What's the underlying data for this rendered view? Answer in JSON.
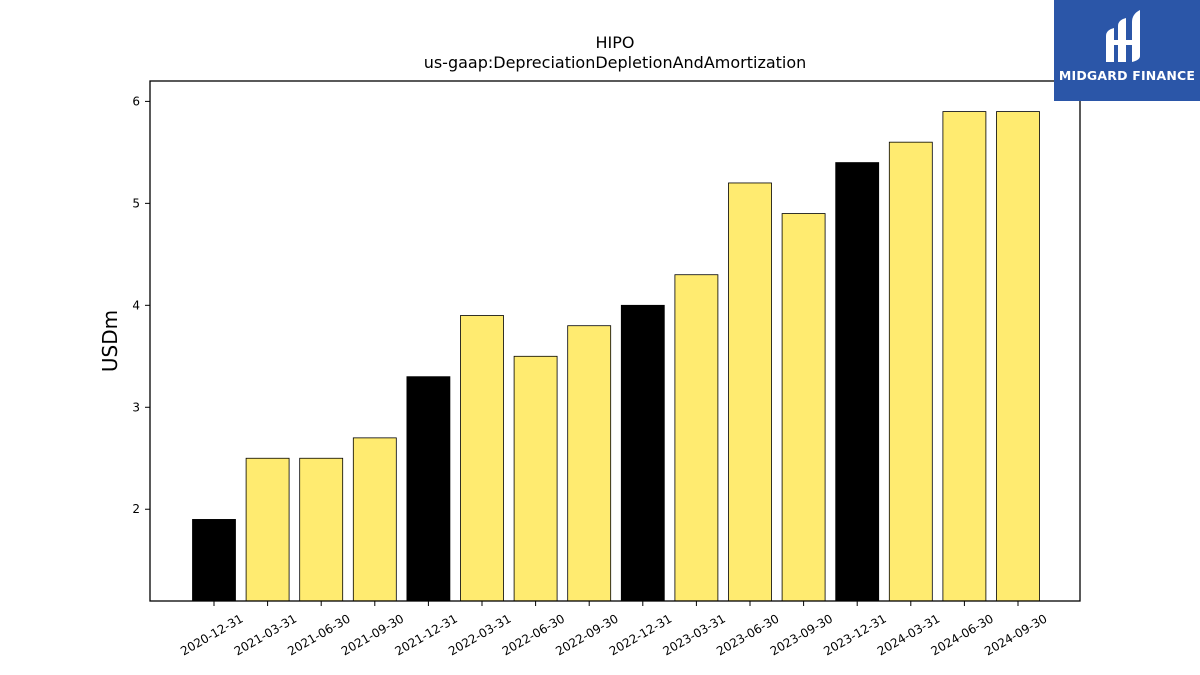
{
  "chart_data": {
    "type": "bar",
    "title": "HIPO",
    "subtitle": "us-gaap:DepreciationDepletionAndAmortization",
    "xlabel": "",
    "ylabel": "USDm",
    "ylim": [
      1.1,
      6.2
    ],
    "yticks": [
      2,
      3,
      4,
      5,
      6
    ],
    "grid": false,
    "categories": [
      "2020-12-31",
      "2021-03-31",
      "2021-06-30",
      "2021-09-30",
      "2021-12-31",
      "2022-03-31",
      "2022-06-30",
      "2022-09-30",
      "2022-12-31",
      "2023-03-31",
      "2023-06-30",
      "2023-09-30",
      "2023-12-31",
      "2024-03-31",
      "2024-06-30",
      "2024-09-30"
    ],
    "values": [
      1.9,
      2.5,
      2.5,
      2.7,
      3.3,
      3.9,
      3.5,
      3.8,
      4.0,
      4.3,
      5.2,
      4.9,
      5.4,
      5.6,
      5.9,
      5.9
    ],
    "bar_colors": [
      "#000000",
      "#ffeb70",
      "#ffeb70",
      "#ffeb70",
      "#000000",
      "#ffeb70",
      "#ffeb70",
      "#ffeb70",
      "#000000",
      "#ffeb70",
      "#ffeb70",
      "#ffeb70",
      "#000000",
      "#ffeb70",
      "#ffeb70",
      "#ffeb70"
    ]
  },
  "logo": {
    "text": "MIDGARD FINANCE",
    "background": "#2b56a8",
    "icon": "midgard-logo-icon"
  }
}
